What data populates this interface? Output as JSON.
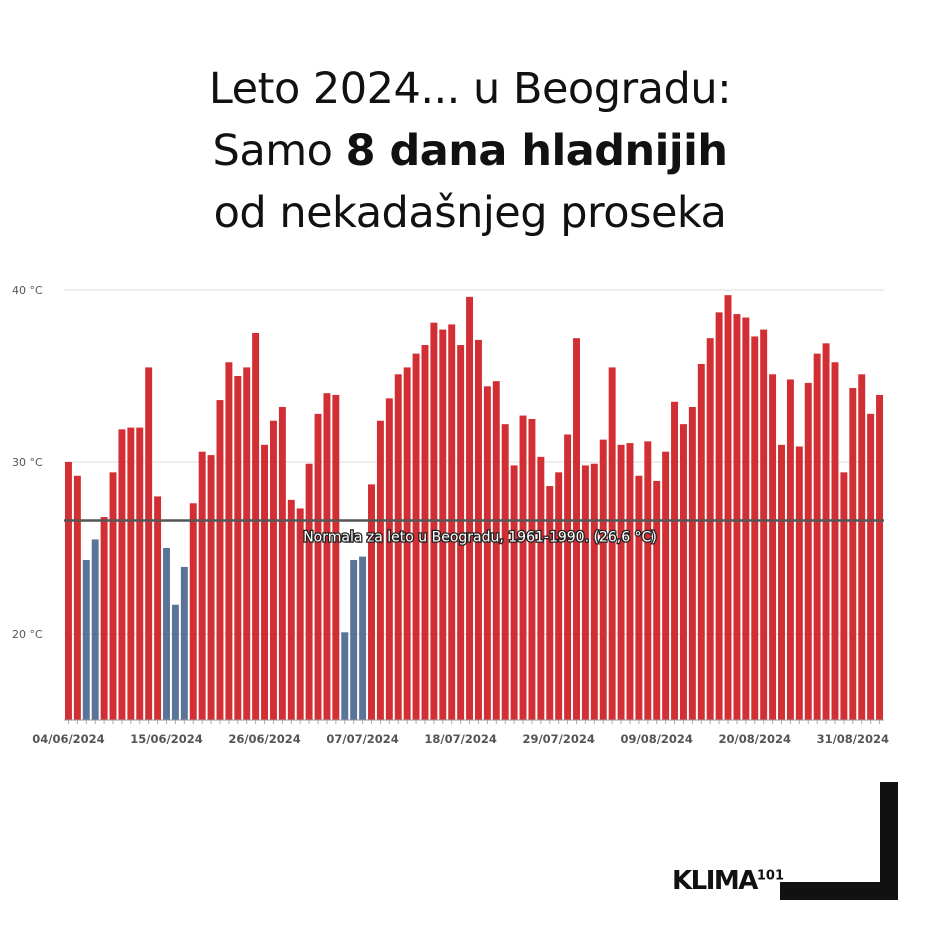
{
  "title": {
    "line1": "Leto 2024... u Beogradu:",
    "line2_pre": "Samo ",
    "line2_bold": "8 dana hladnijih",
    "line3": "od nekadašnjeg proseka"
  },
  "brand": {
    "name": "KLIMA",
    "sup": "101"
  },
  "colors": {
    "warm": "#d12f34",
    "cold": "#5a7499",
    "normal_line": "#555555",
    "grid": "#dddddd",
    "text": "#555555"
  },
  "chart_data": {
    "type": "bar",
    "unit": "°C",
    "ylim": [
      15,
      40
    ],
    "yticks": [
      {
        "value": 20,
        "label": "20 °C"
      },
      {
        "value": 30,
        "label": "30 °C"
      },
      {
        "value": 40,
        "label": "40 °C"
      }
    ],
    "xtick_labels": [
      {
        "index": 0,
        "label": "04/06/2024"
      },
      {
        "index": 11,
        "label": "15/06/2024"
      },
      {
        "index": 22,
        "label": "26/06/2024"
      },
      {
        "index": 33,
        "label": "07/07/2024"
      },
      {
        "index": 44,
        "label": "18/07/2024"
      },
      {
        "index": 55,
        "label": "29/07/2024"
      },
      {
        "index": 66,
        "label": "09/08/2024"
      },
      {
        "index": 77,
        "label": "20/08/2024"
      },
      {
        "index": 88,
        "label": "31/08/2024"
      }
    ],
    "reference_line": {
      "value": 26.6,
      "label": "Normala za leto u Beogradu, 1961-1990. (26,6 °C)"
    },
    "values": [
      30.0,
      29.2,
      24.3,
      25.5,
      26.8,
      29.4,
      31.9,
      32.0,
      32.0,
      35.5,
      28.0,
      25.0,
      21.7,
      23.9,
      27.6,
      30.6,
      30.4,
      33.6,
      35.8,
      35.0,
      35.5,
      37.5,
      31.0,
      32.4,
      33.2,
      27.8,
      27.3,
      29.9,
      32.8,
      34.0,
      33.9,
      20.1,
      24.3,
      24.5,
      28.7,
      32.4,
      33.7,
      35.1,
      35.5,
      36.3,
      36.8,
      38.1,
      37.7,
      38.0,
      36.8,
      39.6,
      37.1,
      34.4,
      34.7,
      32.2,
      29.8,
      32.7,
      32.5,
      30.3,
      28.6,
      29.4,
      31.6,
      37.2,
      29.8,
      29.9,
      31.3,
      35.5,
      31.0,
      31.1,
      29.2,
      31.2,
      28.9,
      30.6,
      33.5,
      32.2,
      33.2,
      35.7,
      37.2,
      38.7,
      39.7,
      38.6,
      38.4,
      37.3,
      37.7,
      35.1,
      31.0,
      34.8,
      30.9,
      34.6,
      36.3,
      36.9,
      35.8,
      29.4,
      34.3,
      35.1,
      32.8,
      33.9
    ]
  }
}
